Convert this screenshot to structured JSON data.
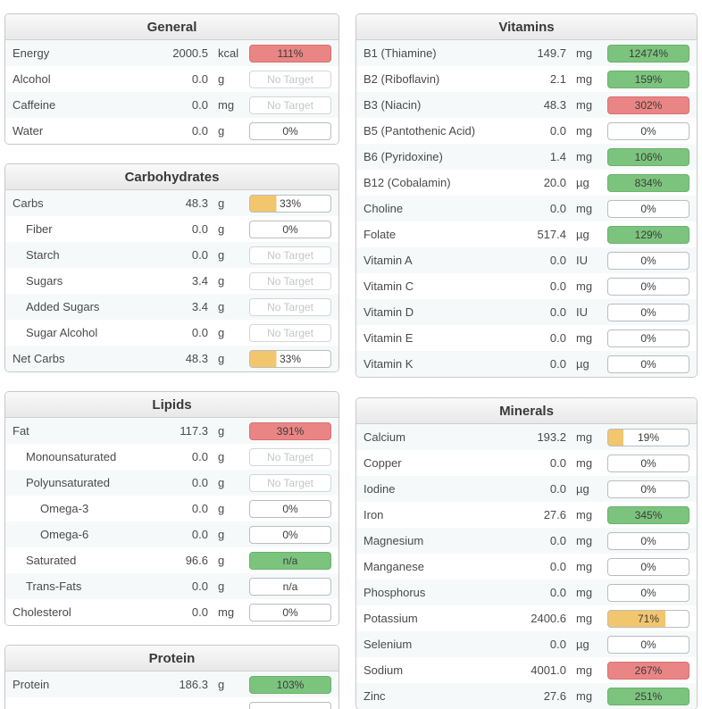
{
  "colors": {
    "green": "#7cc47e",
    "red": "#e98585",
    "yellow": "#f2c66d"
  },
  "panels": [
    {
      "id": "general",
      "column": "left",
      "title": "General",
      "rows": [
        {
          "label": "Energy",
          "value": "2000.5",
          "unit": "kcal",
          "indent": 0,
          "badge": {
            "text": "111%",
            "type": "red"
          }
        },
        {
          "label": "Alcohol",
          "value": "0.0",
          "unit": "g",
          "indent": 0,
          "badge": {
            "text": "No Target",
            "type": "notarget"
          }
        },
        {
          "label": "Caffeine",
          "value": "0.0",
          "unit": "mg",
          "indent": 0,
          "badge": {
            "text": "No Target",
            "type": "notarget"
          }
        },
        {
          "label": "Water",
          "value": "0.0",
          "unit": "g",
          "indent": 0,
          "badge": {
            "text": "0%",
            "type": "plain"
          }
        }
      ]
    },
    {
      "id": "carbohydrates",
      "column": "left",
      "title": "Carbohydrates",
      "rows": [
        {
          "label": "Carbs",
          "value": "48.3",
          "unit": "g",
          "indent": 0,
          "badge": {
            "text": "33%",
            "type": "partial",
            "fill": 33
          }
        },
        {
          "label": "Fiber",
          "value": "0.0",
          "unit": "g",
          "indent": 1,
          "badge": {
            "text": "0%",
            "type": "plain"
          }
        },
        {
          "label": "Starch",
          "value": "0.0",
          "unit": "g",
          "indent": 1,
          "badge": {
            "text": "No Target",
            "type": "notarget"
          }
        },
        {
          "label": "Sugars",
          "value": "3.4",
          "unit": "g",
          "indent": 1,
          "badge": {
            "text": "No Target",
            "type": "notarget"
          }
        },
        {
          "label": "Added Sugars",
          "value": "3.4",
          "unit": "g",
          "indent": 1,
          "badge": {
            "text": "No Target",
            "type": "notarget"
          }
        },
        {
          "label": "Sugar Alcohol",
          "value": "0.0",
          "unit": "g",
          "indent": 1,
          "badge": {
            "text": "No Target",
            "type": "notarget"
          }
        },
        {
          "label": "Net Carbs",
          "value": "48.3",
          "unit": "g",
          "indent": 0,
          "badge": {
            "text": "33%",
            "type": "partial",
            "fill": 33
          }
        }
      ]
    },
    {
      "id": "lipids",
      "column": "left",
      "title": "Lipids",
      "rows": [
        {
          "label": "Fat",
          "value": "117.3",
          "unit": "g",
          "indent": 0,
          "badge": {
            "text": "391%",
            "type": "red"
          }
        },
        {
          "label": "Monounsaturated",
          "value": "0.0",
          "unit": "g",
          "indent": 1,
          "badge": {
            "text": "No Target",
            "type": "notarget"
          }
        },
        {
          "label": "Polyunsaturated",
          "value": "0.0",
          "unit": "g",
          "indent": 1,
          "badge": {
            "text": "No Target",
            "type": "notarget"
          }
        },
        {
          "label": "Omega-3",
          "value": "0.0",
          "unit": "g",
          "indent": 2,
          "badge": {
            "text": "0%",
            "type": "plain"
          }
        },
        {
          "label": "Omega-6",
          "value": "0.0",
          "unit": "g",
          "indent": 2,
          "badge": {
            "text": "0%",
            "type": "plain"
          }
        },
        {
          "label": "Saturated",
          "value": "96.6",
          "unit": "g",
          "indent": 1,
          "badge": {
            "text": "n/a",
            "type": "green"
          }
        },
        {
          "label": "Trans-Fats",
          "value": "0.0",
          "unit": "g",
          "indent": 1,
          "badge": {
            "text": "n/a",
            "type": "plain"
          }
        },
        {
          "label": "Cholesterol",
          "value": "0.0",
          "unit": "mg",
          "indent": 0,
          "badge": {
            "text": "0%",
            "type": "plain"
          }
        }
      ]
    },
    {
      "id": "protein",
      "column": "left",
      "title": "Protein",
      "rows": [
        {
          "label": "Protein",
          "value": "186.3",
          "unit": "g",
          "indent": 0,
          "badge": {
            "text": "103%",
            "type": "green"
          }
        },
        {
          "label": "",
          "value": "",
          "unit": "",
          "indent": 0,
          "badge": {
            "text": "",
            "type": "plain"
          }
        }
      ]
    },
    {
      "id": "vitamins",
      "column": "right",
      "title": "Vitamins",
      "rows": [
        {
          "label": "B1 (Thiamine)",
          "value": "149.7",
          "unit": "mg",
          "indent": 0,
          "badge": {
            "text": "12474%",
            "type": "green"
          }
        },
        {
          "label": "B2 (Riboflavin)",
          "value": "2.1",
          "unit": "mg",
          "indent": 0,
          "badge": {
            "text": "159%",
            "type": "green"
          }
        },
        {
          "label": "B3 (Niacin)",
          "value": "48.3",
          "unit": "mg",
          "indent": 0,
          "badge": {
            "text": "302%",
            "type": "red"
          }
        },
        {
          "label": "B5 (Pantothenic Acid)",
          "value": "0.0",
          "unit": "mg",
          "indent": 0,
          "badge": {
            "text": "0%",
            "type": "plain"
          }
        },
        {
          "label": "B6 (Pyridoxine)",
          "value": "1.4",
          "unit": "mg",
          "indent": 0,
          "badge": {
            "text": "106%",
            "type": "green"
          }
        },
        {
          "label": "B12 (Cobalamin)",
          "value": "20.0",
          "unit": "µg",
          "indent": 0,
          "badge": {
            "text": "834%",
            "type": "green"
          }
        },
        {
          "label": "Choline",
          "value": "0.0",
          "unit": "mg",
          "indent": 0,
          "badge": {
            "text": "0%",
            "type": "plain"
          }
        },
        {
          "label": "Folate",
          "value": "517.4",
          "unit": "µg",
          "indent": 0,
          "badge": {
            "text": "129%",
            "type": "green"
          }
        },
        {
          "label": "Vitamin A",
          "value": "0.0",
          "unit": "IU",
          "indent": 0,
          "badge": {
            "text": "0%",
            "type": "plain"
          }
        },
        {
          "label": "Vitamin C",
          "value": "0.0",
          "unit": "mg",
          "indent": 0,
          "badge": {
            "text": "0%",
            "type": "plain"
          }
        },
        {
          "label": "Vitamin D",
          "value": "0.0",
          "unit": "IU",
          "indent": 0,
          "badge": {
            "text": "0%",
            "type": "plain"
          }
        },
        {
          "label": "Vitamin E",
          "value": "0.0",
          "unit": "mg",
          "indent": 0,
          "badge": {
            "text": "0%",
            "type": "plain"
          }
        },
        {
          "label": "Vitamin K",
          "value": "0.0",
          "unit": "µg",
          "indent": 0,
          "badge": {
            "text": "0%",
            "type": "plain"
          }
        }
      ]
    },
    {
      "id": "minerals",
      "column": "right",
      "title": "Minerals",
      "rows": [
        {
          "label": "Calcium",
          "value": "193.2",
          "unit": "mg",
          "indent": 0,
          "badge": {
            "text": "19%",
            "type": "partial",
            "fill": 19
          }
        },
        {
          "label": "Copper",
          "value": "0.0",
          "unit": "mg",
          "indent": 0,
          "badge": {
            "text": "0%",
            "type": "plain"
          }
        },
        {
          "label": "Iodine",
          "value": "0.0",
          "unit": "µg",
          "indent": 0,
          "badge": {
            "text": "0%",
            "type": "plain"
          }
        },
        {
          "label": "Iron",
          "value": "27.6",
          "unit": "mg",
          "indent": 0,
          "badge": {
            "text": "345%",
            "type": "green"
          }
        },
        {
          "label": "Magnesium",
          "value": "0.0",
          "unit": "mg",
          "indent": 0,
          "badge": {
            "text": "0%",
            "type": "plain"
          }
        },
        {
          "label": "Manganese",
          "value": "0.0",
          "unit": "mg",
          "indent": 0,
          "badge": {
            "text": "0%",
            "type": "plain"
          }
        },
        {
          "label": "Phosphorus",
          "value": "0.0",
          "unit": "mg",
          "indent": 0,
          "badge": {
            "text": "0%",
            "type": "plain"
          }
        },
        {
          "label": "Potassium",
          "value": "2400.6",
          "unit": "mg",
          "indent": 0,
          "badge": {
            "text": "71%",
            "type": "partial",
            "fill": 71
          }
        },
        {
          "label": "Selenium",
          "value": "0.0",
          "unit": "µg",
          "indent": 0,
          "badge": {
            "text": "0%",
            "type": "plain"
          }
        },
        {
          "label": "Sodium",
          "value": "4001.0",
          "unit": "mg",
          "indent": 0,
          "badge": {
            "text": "267%",
            "type": "red"
          }
        },
        {
          "label": "Zinc",
          "value": "27.6",
          "unit": "mg",
          "indent": 0,
          "badge": {
            "text": "251%",
            "type": "green"
          }
        }
      ]
    }
  ]
}
